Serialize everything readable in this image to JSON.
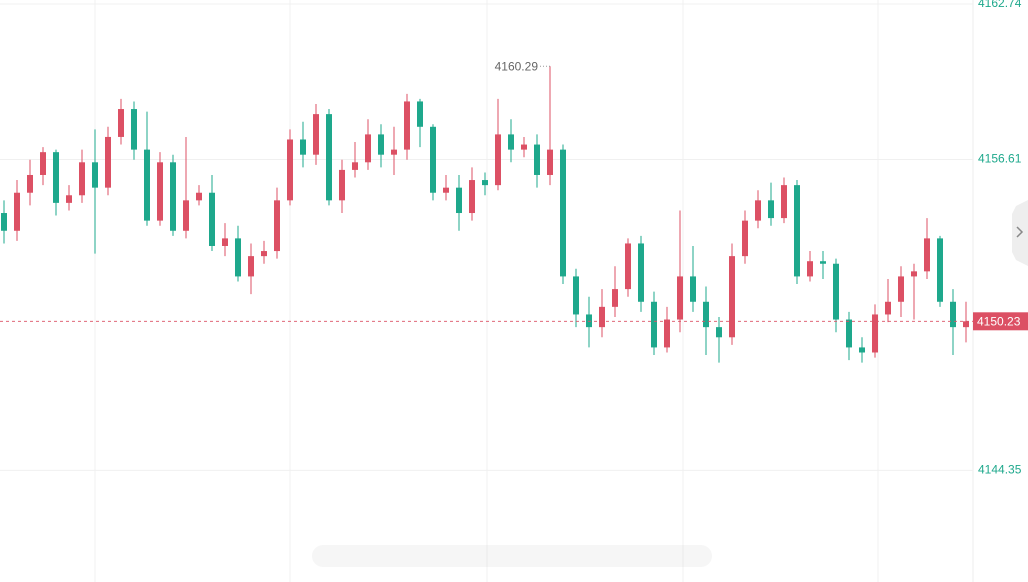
{
  "chart_data": {
    "type": "candlestick",
    "open": [
      4154.5,
      4153.8,
      4155.3,
      4156.0,
      4156.9,
      4154.9,
      4155.2,
      4156.5,
      4155.5,
      4157.5,
      4158.6,
      4157.0,
      4154.2,
      4156.5,
      4153.8,
      4155.0,
      4155.3,
      4153.2,
      4153.5,
      4152.0,
      4152.8,
      4153.0,
      4155.0,
      4157.4,
      4156.8,
      4158.4,
      4155.0,
      4156.2,
      4156.5,
      4157.6,
      4156.8,
      4157.0,
      4158.9,
      4157.9,
      4155.3,
      4155.5,
      4154.5,
      4155.8,
      4155.6,
      4157.6,
      4157.0,
      4157.2,
      4156.0,
      4157.0,
      4152.0,
      4150.5,
      4150.0,
      4150.8,
      4151.5,
      4153.3,
      4151.0,
      4149.2,
      4150.3,
      4152.0,
      4151.0,
      4150.0,
      4149.6,
      4152.8,
      4154.2,
      4155.0,
      4154.3,
      4155.6,
      4152.0,
      4152.6,
      4152.5,
      4150.3,
      4149.2,
      4149.0,
      4150.5,
      4151.0,
      4152.0,
      4152.2,
      4153.5,
      4151.0,
      4150.0
    ],
    "high": [
      4155.0,
      4155.8,
      4156.6,
      4157.1,
      4157.0,
      4155.6,
      4157.0,
      4157.8,
      4157.9,
      4159.0,
      4158.9,
      4158.5,
      4156.9,
      4156.8,
      4157.5,
      4155.6,
      4156.0,
      4154.1,
      4154.0,
      4153.3,
      4153.4,
      4155.5,
      4157.8,
      4158.1,
      4158.8,
      4158.6,
      4156.6,
      4157.3,
      4158.2,
      4158.0,
      4157.9,
      4159.2,
      4159.0,
      4158.0,
      4156.0,
      4156.0,
      4156.3,
      4156.1,
      4159.0,
      4158.2,
      4157.5,
      4157.6,
      4160.29,
      4157.2,
      4152.3,
      4151.2,
      4151.5,
      4152.4,
      4153.5,
      4153.6,
      4151.4,
      4150.8,
      4154.6,
      4153.2,
      4151.6,
      4150.4,
      4153.3,
      4154.6,
      4155.4,
      4155.7,
      4155.9,
      4155.8,
      4153.0,
      4153.0,
      4152.7,
      4150.6,
      4149.6,
      4150.9,
      4151.9,
      4152.4,
      4152.5,
      4154.3,
      4153.6,
      4151.5,
      4151.0
    ],
    "low": [
      4153.3,
      4153.4,
      4154.8,
      4155.6,
      4154.4,
      4154.6,
      4154.9,
      4152.9,
      4155.2,
      4157.2,
      4156.6,
      4154.0,
      4154.0,
      4153.6,
      4153.5,
      4154.8,
      4153.0,
      4152.8,
      4151.8,
      4151.3,
      4152.5,
      4152.7,
      4154.8,
      4156.3,
      4156.4,
      4154.8,
      4154.5,
      4155.9,
      4156.2,
      4156.3,
      4156.0,
      4156.6,
      4157.1,
      4155.0,
      4155.0,
      4153.8,
      4154.2,
      4155.2,
      4155.4,
      4156.5,
      4156.7,
      4155.5,
      4155.6,
      4151.7,
      4150.0,
      4149.2,
      4149.6,
      4150.4,
      4151.2,
      4150.6,
      4148.9,
      4149.0,
      4149.8,
      4150.6,
      4148.9,
      4148.6,
      4149.3,
      4152.5,
      4153.9,
      4154.0,
      4154.1,
      4151.7,
      4151.8,
      4151.9,
      4149.8,
      4148.7,
      4148.6,
      4148.8,
      4150.2,
      4150.4,
      4150.3,
      4151.9,
      4150.8,
      4148.9,
      4149.4
    ],
    "close": [
      4153.8,
      4155.3,
      4156.0,
      4156.9,
      4154.9,
      4155.2,
      4156.5,
      4155.5,
      4157.5,
      4158.6,
      4157.0,
      4154.2,
      4156.5,
      4153.8,
      4155.0,
      4155.3,
      4153.2,
      4153.5,
      4152.0,
      4152.8,
      4153.0,
      4155.0,
      4157.4,
      4156.8,
      4158.4,
      4155.0,
      4156.2,
      4156.5,
      4157.6,
      4156.8,
      4157.0,
      4158.9,
      4157.9,
      4155.3,
      4155.5,
      4154.5,
      4155.8,
      4155.6,
      4157.6,
      4157.0,
      4157.2,
      4156.0,
      4157.0,
      4152.0,
      4150.5,
      4150.0,
      4150.8,
      4151.5,
      4153.3,
      4151.0,
      4149.2,
      4150.3,
      4152.0,
      4151.0,
      4150.0,
      4149.6,
      4152.8,
      4154.2,
      4155.0,
      4154.3,
      4155.6,
      4152.0,
      4152.6,
      4152.5,
      4150.3,
      4149.2,
      4149.0,
      4150.5,
      4151.0,
      4152.0,
      4152.2,
      4153.5,
      4151.0,
      4150.0,
      4150.23
    ],
    "up_color": "#dc5064",
    "down_color": "#1ea88c",
    "ylim": [
      4139.95,
      4162.9
    ],
    "yticks": [
      4162.74,
      4156.61,
      4144.35
    ],
    "grid": true
  }
}
